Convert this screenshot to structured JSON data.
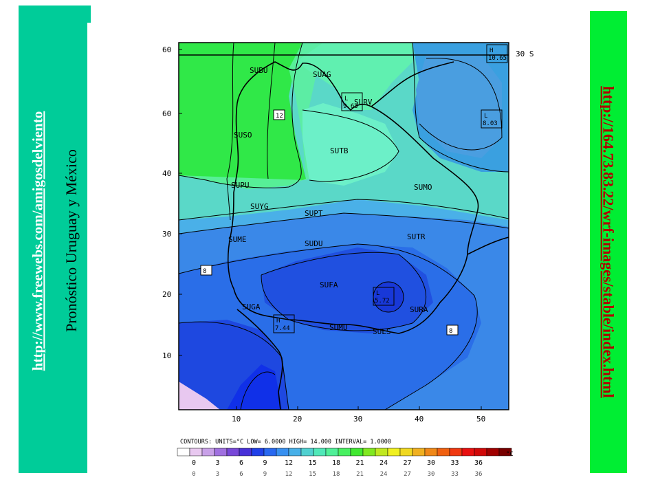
{
  "left_panel": {
    "link_text": "http://www.freewebs.com/amigosdelviento",
    "title": "Pronóstico  Uruguay y México"
  },
  "right_panel": {
    "link_text": "http://164.73.83.22/wrf-images/stable/index.html"
  },
  "map": {
    "y_ticks": [
      "60",
      "60",
      "40",
      "30",
      "20",
      "10"
    ],
    "x_ticks": [
      "10",
      "20",
      "30",
      "40",
      "50"
    ],
    "lat_label": "30 S",
    "stations": [
      {
        "name": "SUBU"
      },
      {
        "name": "SUAG"
      },
      {
        "name": "SURV"
      },
      {
        "name": "SUSO"
      },
      {
        "name": "SUTB"
      },
      {
        "name": "SUPU"
      },
      {
        "name": "SUMO"
      },
      {
        "name": "SUYG"
      },
      {
        "name": "SUPT"
      },
      {
        "name": "SUME"
      },
      {
        "name": "SUDU"
      },
      {
        "name": "SUTR"
      },
      {
        "name": "SUFA"
      },
      {
        "name": "SUGA"
      },
      {
        "name": "SURA"
      },
      {
        "name": "SUMU"
      },
      {
        "name": "SULS"
      }
    ],
    "extrema": [
      {
        "letter": "H",
        "value": "10.65"
      },
      {
        "letter": "L",
        "value": "9.63"
      },
      {
        "letter": "L",
        "value": "8.03"
      },
      {
        "letter": "L",
        "value": "5.72"
      },
      {
        "letter": "H",
        "value": "7.44"
      }
    ],
    "contour_labels": [
      "12",
      "8",
      "8"
    ],
    "contours_info": "CONTOURS: UNITS=°C  LOW= 6.0000    HIGH= 14.000     INTERVAL= 1.0000",
    "scale_ticks": [
      "0",
      "3",
      "6",
      "9",
      "12",
      "15",
      "18",
      "21",
      "24",
      "27",
      "30",
      "33",
      "36"
    ],
    "scale_unit": "°C",
    "scale_colors": [
      "#ffffff",
      "#e8c8f0",
      "#c8a0e8",
      "#a070e0",
      "#7848d8",
      "#4830d8",
      "#2040e8",
      "#2868f0",
      "#3890f0",
      "#48b0e8",
      "#50d0d0",
      "#50e8b8",
      "#50f098",
      "#48f060",
      "#40e830",
      "#80e820",
      "#c0e820",
      "#f0f020",
      "#f0d820",
      "#f0b020",
      "#f08818",
      "#f06010",
      "#f03810",
      "#e81010",
      "#d00808",
      "#a00000",
      "#780000"
    ]
  }
}
